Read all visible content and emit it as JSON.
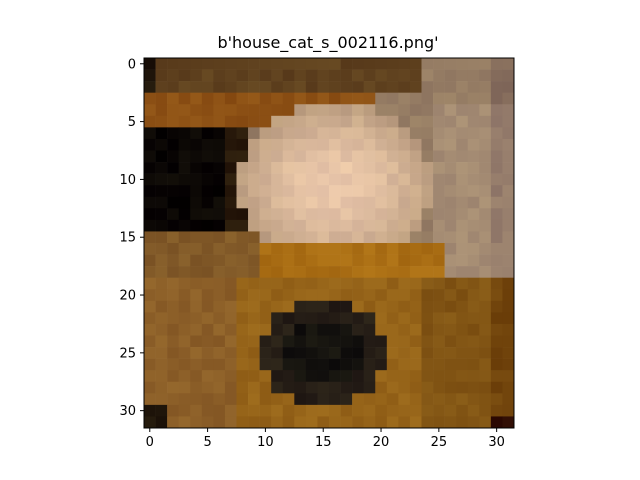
{
  "chart_data": {
    "type": "heatmap",
    "title": "b'house_cat_s_002116.png'",
    "xlabel": "",
    "ylabel": "",
    "image_size": [
      32,
      32
    ],
    "xlim": [
      -0.5,
      31.5
    ],
    "ylim": [
      31.5,
      -0.5
    ],
    "x_ticks": [
      0,
      5,
      10,
      15,
      20,
      25,
      30
    ],
    "y_ticks": [
      0,
      5,
      10,
      15,
      20,
      25,
      30
    ],
    "x_tick_labels": [
      "0",
      "5",
      "10",
      "15",
      "20",
      "25",
      "30"
    ],
    "y_tick_labels": [
      "0",
      "5",
      "10",
      "15",
      "20",
      "25",
      "30"
    ],
    "grid": false,
    "legend": "none",
    "regions_note_colors": {
      "dark_bg": "#120a05",
      "brown_wood": "#7a4a14",
      "light_fur": "#e0c4a6",
      "wall": "#a88a6c",
      "shadow": "#2a2218",
      "floor": "#8a5a1c"
    }
  }
}
